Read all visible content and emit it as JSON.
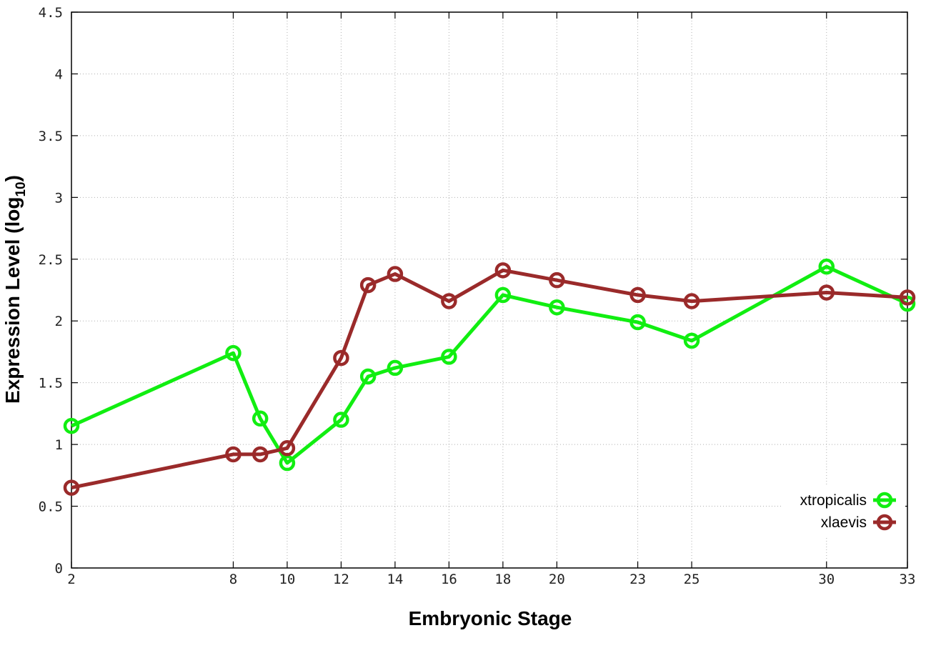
{
  "chart_data": {
    "type": "line",
    "title": "",
    "xlabel": "Embryonic Stage",
    "ylabel": "Expression Level (log",
    "ylabel_subscript": "10",
    "ylabel_suffix": ")",
    "x": [
      2,
      8,
      9,
      10,
      12,
      13,
      14,
      16,
      18,
      20,
      23,
      25,
      30,
      33
    ],
    "xticks": [
      "2",
      "8",
      "10",
      "12",
      "14",
      "16",
      "18",
      "20",
      "23",
      "25",
      "30",
      "33"
    ],
    "yticks": [
      "0",
      "0.5",
      "1",
      "1.5",
      "2",
      "2.5",
      "3",
      "3.5",
      "4",
      "4.5"
    ],
    "xlim": [
      2,
      33
    ],
    "ylim": [
      0,
      4.5
    ],
    "grid": true,
    "legend_position": "bottom-right",
    "series": [
      {
        "name": "xtropicalis",
        "color": "#11ee11",
        "values": [
          1.15,
          1.74,
          1.21,
          0.85,
          1.2,
          1.55,
          1.62,
          1.71,
          2.21,
          2.11,
          1.99,
          1.84,
          2.44,
          2.14
        ]
      },
      {
        "name": "xlaevis",
        "color": "#9a2a2a",
        "values": [
          0.65,
          0.92,
          0.92,
          0.97,
          1.7,
          2.29,
          2.38,
          2.16,
          2.41,
          2.33,
          2.21,
          2.16,
          2.23,
          2.19
        ]
      }
    ]
  }
}
